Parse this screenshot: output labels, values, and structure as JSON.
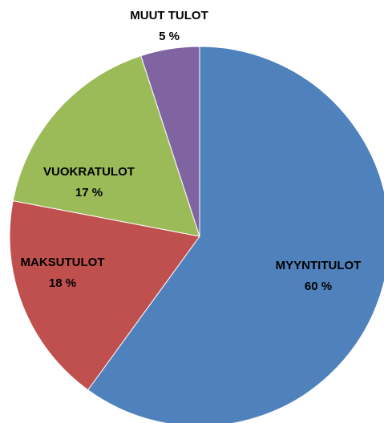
{
  "chart_data": {
    "type": "pie",
    "categories": [
      "MYYNTITULOT",
      "MAKSUTULOT",
      "VUOKRATULOT",
      "MUUT TULOT"
    ],
    "values": [
      60,
      18,
      17,
      5
    ],
    "value_labels": [
      "60 %",
      "18 %",
      "17 %",
      "5 %"
    ],
    "colors": [
      "#4f81bd",
      "#c0504d",
      "#9bbb59",
      "#8064a2"
    ]
  }
}
